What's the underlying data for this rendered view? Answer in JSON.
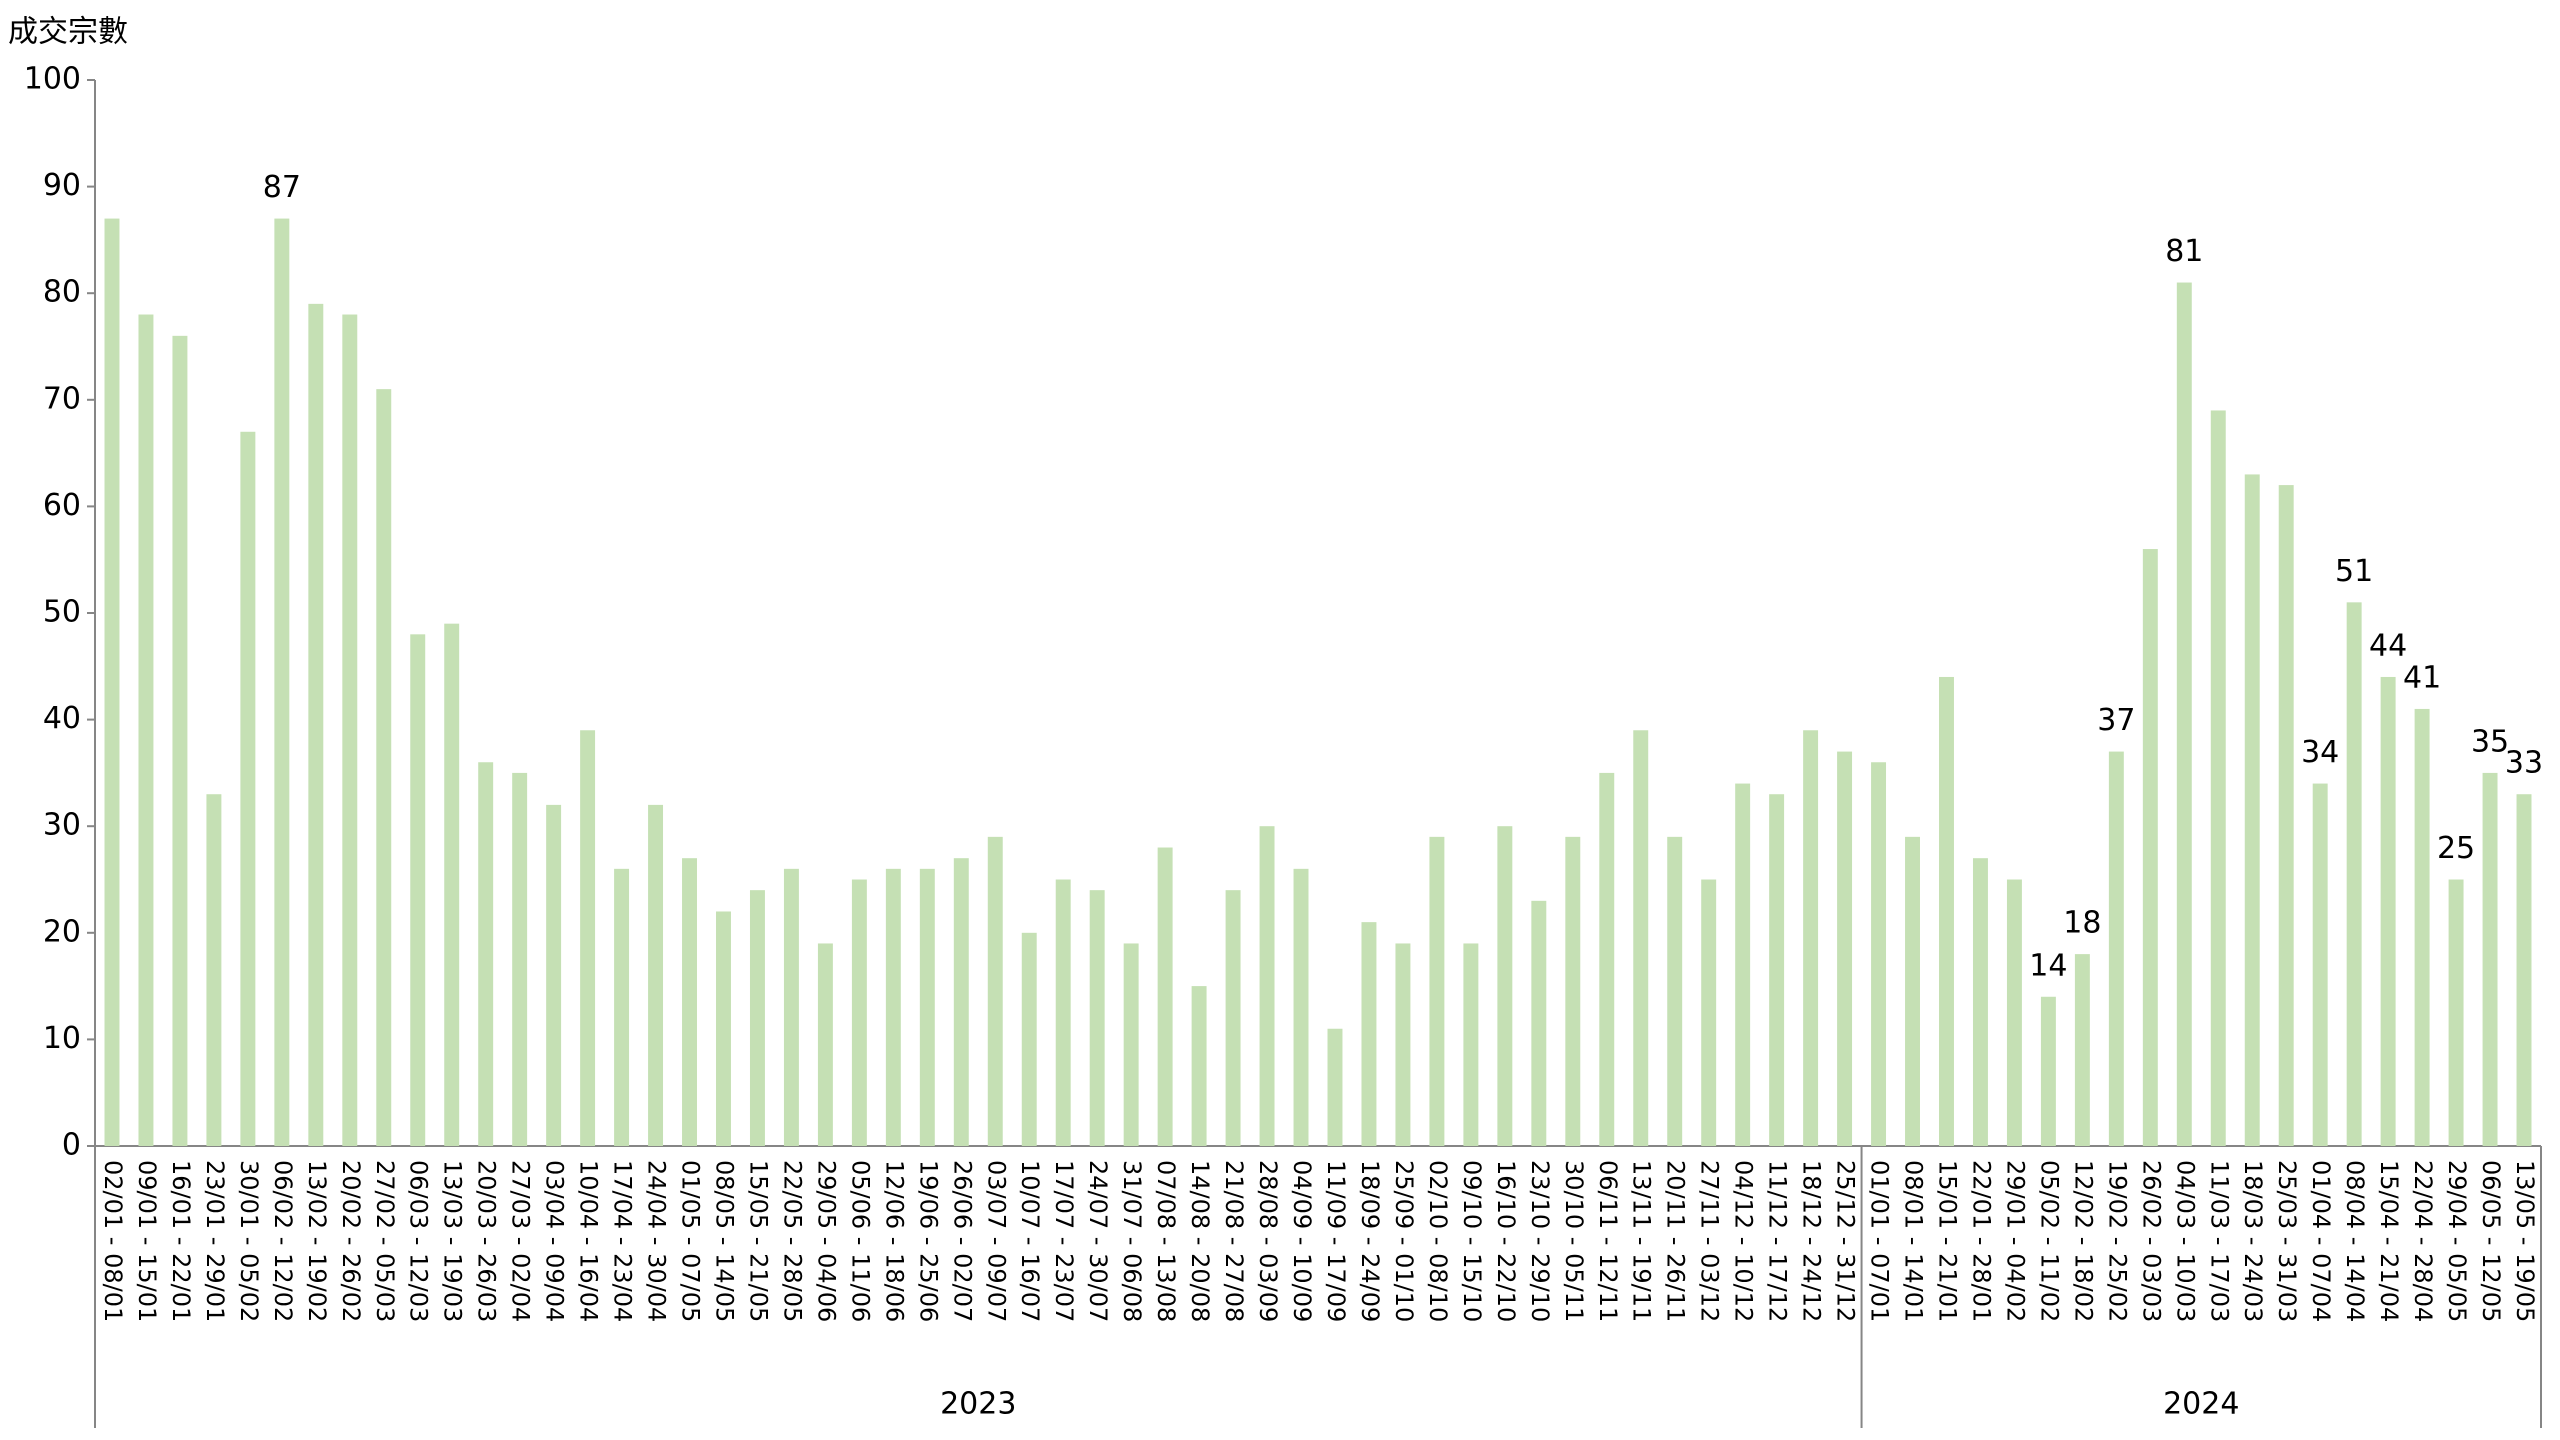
{
  "chart_data": {
    "type": "bar",
    "y_axis_title": "成交宗數",
    "categories": [
      "02/01 - 08/01",
      "09/01 - 15/01",
      "16/01 - 22/01",
      "23/01 - 29/01",
      "30/01 - 05/02",
      "06/02 - 12/02",
      "13/02 - 19/02",
      "20/02 - 26/02",
      "27/02 - 05/03",
      "06/03 - 12/03",
      "13/03 - 19/03",
      "20/03 - 26/03",
      "27/03 - 02/04",
      "03/04 - 09/04",
      "10/04 - 16/04",
      "17/04 - 23/04",
      "24/04 - 30/04",
      "01/05 - 07/05",
      "08/05 - 14/05",
      "15/05 - 21/05",
      "22/05 - 28/05",
      "29/05 - 04/06",
      "05/06 - 11/06",
      "12/06 - 18/06",
      "19/06 - 25/06",
      "26/06 - 02/07",
      "03/07 - 09/07",
      "10/07 - 16/07",
      "17/07 - 23/07",
      "24/07 - 30/07",
      "31/07 - 06/08",
      "07/08 - 13/08",
      "14/08 - 20/08",
      "21/08 - 27/08",
      "28/08 - 03/09",
      "04/09 - 10/09",
      "11/09 - 17/09",
      "18/09 - 24/09",
      "25/09 - 01/10",
      "02/10 - 08/10",
      "09/10 - 15/10",
      "16/10 - 22/10",
      "23/10 - 29/10",
      "30/10 - 05/11",
      "06/11 - 12/11",
      "13/11 - 19/11",
      "20/11 - 26/11",
      "27/11 - 03/12",
      "04/12 - 10/12",
      "11/12 - 17/12",
      "18/12 - 24/12",
      "25/12 - 31/12",
      "01/01 - 07/01",
      "08/01 - 14/01",
      "15/01 - 21/01",
      "22/01 - 28/01",
      "29/01 - 04/02",
      "05/02 - 11/02",
      "12/02 - 18/02",
      "19/02 - 25/02",
      "26/02 - 03/03",
      "04/03 - 10/03",
      "11/03 - 17/03",
      "18/03 - 24/03",
      "25/03 - 31/03",
      "01/04 - 07/04",
      "08/04 - 14/04",
      "15/04 - 21/04",
      "22/04 - 28/04",
      "29/04 - 05/05",
      "06/05 - 12/05",
      "13/05 - 19/05"
    ],
    "values": [
      87,
      78,
      76,
      33,
      67,
      87,
      79,
      78,
      71,
      48,
      49,
      36,
      35,
      32,
      39,
      26,
      32,
      27,
      22,
      24,
      26,
      19,
      25,
      26,
      26,
      27,
      29,
      20,
      25,
      24,
      19,
      28,
      15,
      24,
      30,
      26,
      11,
      21,
      19,
      29,
      19,
      30,
      23,
      29,
      35,
      39,
      29,
      25,
      34,
      33,
      39,
      37,
      36,
      29,
      44,
      27,
      25,
      14,
      18,
      37,
      56,
      81,
      69,
      63,
      62,
      34,
      51,
      44,
      41,
      25,
      35,
      33
    ],
    "labeled_points": [
      5,
      57,
      58,
      59,
      61,
      65,
      66,
      67,
      68,
      69,
      70,
      71
    ],
    "groups": [
      {
        "label": "2023",
        "count": 52
      },
      {
        "label": "2024",
        "count": 20
      }
    ],
    "color": "#c5e0b4",
    "ylim": [
      0,
      100
    ],
    "yticks": [
      0,
      10,
      20,
      30,
      40,
      50,
      60,
      70,
      80,
      90,
      100
    ]
  }
}
